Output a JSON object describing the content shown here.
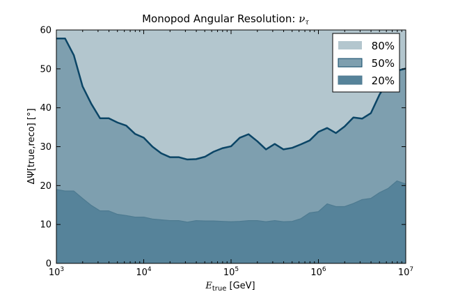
{
  "chart_data": {
    "type": "area",
    "title": "Monopod Angular Resolution: ",
    "title_symbol": "ν",
    "title_symbol_sub": "τ",
    "xlabel_symbol": "E",
    "xlabel_sub": "true",
    "xlabel_unit": " [GeV]",
    "ylabel": "ΔΨ[true,reco] [°]",
    "xscale": "log",
    "xlim": [
      1000,
      10000000
    ],
    "ylim": [
      0,
      60
    ],
    "x_ticks": [
      {
        "value": 1000,
        "base": "10",
        "exp": "3"
      },
      {
        "value": 10000,
        "base": "10",
        "exp": "4"
      },
      {
        "value": 100000,
        "base": "10",
        "exp": "5"
      },
      {
        "value": 1000000,
        "base": "10",
        "exp": "6"
      },
      {
        "value": 10000000,
        "base": "10",
        "exp": "7"
      }
    ],
    "y_ticks": [
      "0",
      "10",
      "20",
      "30",
      "40",
      "50",
      "60"
    ],
    "legend_position": "top-right",
    "x": [
      1000,
      1259,
      1585,
      1995,
      2512,
      3162,
      3981,
      5012,
      6310,
      7943,
      10000,
      12589,
      15849,
      19953,
      25119,
      31623,
      39811,
      50119,
      63096,
      79433,
      100000,
      125893,
      158489,
      199526,
      251189,
      316228,
      398107,
      501187,
      630957,
      794328,
      1000000,
      1258925,
      1584893,
      1995262,
      2511886,
      3162278,
      3981072,
      5011872,
      6309573,
      7943282,
      10000000
    ],
    "series": [
      {
        "name": "80%",
        "color": "#b3c6ce",
        "values": [
          60,
          60,
          60,
          60,
          60,
          60,
          60,
          60,
          60,
          60,
          60,
          60,
          60,
          60,
          60,
          60,
          60,
          60,
          60,
          60,
          60,
          60,
          60,
          60,
          60,
          60,
          60,
          60,
          60,
          60,
          60,
          60,
          60,
          60,
          60,
          60,
          60,
          60,
          60,
          60,
          60
        ]
      },
      {
        "name": "50%",
        "color": "#7e9faf",
        "line_color": "#0b4566",
        "values": [
          57.8,
          57.8,
          53.5,
          45.5,
          41.0,
          37.3,
          37.3,
          36.2,
          35.4,
          33.3,
          32.3,
          30.0,
          28.3,
          27.3,
          27.3,
          26.7,
          26.8,
          27.4,
          28.7,
          29.6,
          30.1,
          32.3,
          33.2,
          31.4,
          29.3,
          30.7,
          29.3,
          29.7,
          30.6,
          31.6,
          33.8,
          34.8,
          33.5,
          35.2,
          37.5,
          37.2,
          38.6,
          43.4,
          47.0,
          49.5,
          50.1
        ]
      },
      {
        "name": "20%",
        "color": "#56839a",
        "line_color": "#4d7a90",
        "values": [
          19.0,
          18.6,
          18.6,
          16.7,
          14.9,
          13.5,
          13.5,
          12.6,
          12.3,
          11.9,
          11.9,
          11.4,
          11.2,
          11.0,
          11.0,
          10.6,
          11.0,
          10.9,
          10.9,
          10.8,
          10.7,
          10.8,
          11.0,
          11.0,
          10.7,
          11.0,
          10.7,
          10.8,
          11.5,
          13.0,
          13.3,
          15.3,
          14.6,
          14.6,
          15.4,
          16.4,
          16.7,
          18.2,
          19.3,
          21.2,
          20.4
        ]
      }
    ]
  }
}
